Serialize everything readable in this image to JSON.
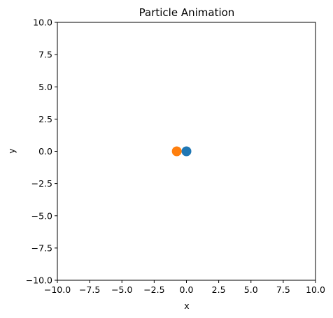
{
  "chart_data": {
    "type": "scatter",
    "title": "Particle Animation",
    "xlabel": "x",
    "ylabel": "y",
    "xlim": [
      -10.0,
      10.0
    ],
    "ylim": [
      -10.0,
      10.0
    ],
    "x_ticks": [
      "−10.0",
      "−7.5",
      "−5.0",
      "−2.5",
      "0.0",
      "2.5",
      "5.0",
      "7.5",
      "10.0"
    ],
    "y_ticks": [
      "−10.0",
      "−7.5",
      "−5.0",
      "−2.5",
      "0.0",
      "2.5",
      "5.0",
      "7.5",
      "10.0"
    ],
    "grid": false,
    "legend": "none",
    "series": [
      {
        "color": "#1f77b4",
        "points": [
          {
            "x": 0.0,
            "y": 0.0
          }
        ]
      },
      {
        "color": "#ff7f0e",
        "points": [
          {
            "x": -0.75,
            "y": 0.0
          }
        ]
      }
    ]
  }
}
